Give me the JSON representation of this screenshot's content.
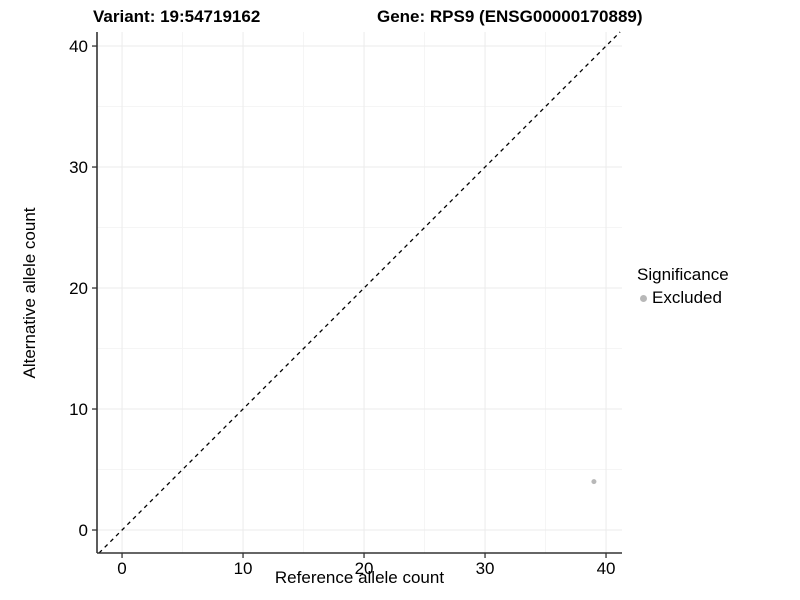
{
  "chart_data": {
    "type": "scatter",
    "titles": {
      "left": "Variant: 19:54719162",
      "right": "Gene: RPS9 (ENSG00000170889)"
    },
    "xlabel": "Reference allele count",
    "ylabel": "Alternative allele count",
    "xlim": [
      -2.07,
      41.32
    ],
    "ylim": [
      -1.9,
      41.16
    ],
    "xticks": [
      0,
      10,
      20,
      30,
      40
    ],
    "yticks": [
      0,
      10,
      20,
      30,
      40
    ],
    "xminor": [
      5,
      15,
      25,
      35
    ],
    "yminor": [
      5,
      15,
      25,
      35
    ],
    "grid": true,
    "identity_line": {
      "slope": 1,
      "intercept": 0,
      "style": "dashed",
      "color": "#000000"
    },
    "legend": {
      "title": "Significance",
      "position": "right",
      "items": [
        {
          "label": "Excluded",
          "color": "#b8b8b8"
        }
      ]
    },
    "series": [
      {
        "name": "Excluded",
        "color": "#b8b8b8",
        "marker_radius": 2.5,
        "points": [
          [
            39,
            4
          ]
        ]
      }
    ],
    "colors": {
      "axis": "#333333",
      "tick": "#333333",
      "grid_major": "#ebebeb",
      "grid_minor": "#f5f5f5",
      "text": "#000000"
    }
  }
}
